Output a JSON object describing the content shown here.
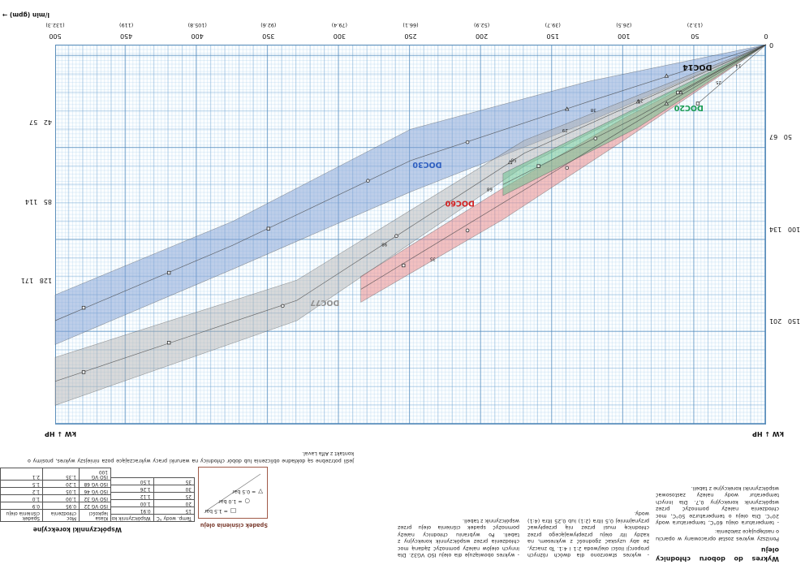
{
  "intro": {
    "title": "Wykres do doboru chłodnicy oleju",
    "p1": "Poniższy wykres został opracowany w oparciu o następujące założenia:",
    "p2": "- temperatura oleju 60°C, temperatura wody 20°C. Dla oleju o temperaturze 50°C, moc chłodzenia należy pomnożyć przez współczynnik korekcyjny 0,7. Dla innych temperatur wody należy zastosować współczynniki korekcyjne z tabeli."
  },
  "note_ratio": "- wykres stworzono dla dwóch różnych proporcji ilości olej/woda 2:1 i 4:1. To znaczy, że aby uzyskać zgodność z wykresem, na każdy litr oleju przepływającego przez chłodnicę musi przez nią przepływać przynajmniej 0,5 litra (2:1) lub 0,25 litra (4:1) wody.",
  "note_viscosity": "- wykres obowiązuje dla oleju ISO VG32. Dla innych olejów należy pomnożyć żądaną moc chłodzenia przez współczynnik korekcyjny z tabeli. Po wybraniu chłodnicy należy pomnożyć spadek ciśnienia oleju przez współczynnik z tabeli.",
  "pressure_legend": {
    "title": "Spadek ciśnienia oleju",
    "items": [
      {
        "symbol": "square",
        "label": "= 1.5 bar"
      },
      {
        "symbol": "circle",
        "label": "= 1.0 bar"
      },
      {
        "symbol": "triangle",
        "label": "= 0.5 bar"
      }
    ]
  },
  "correction": {
    "title": "Współczynniki korekcyjne",
    "water_table": {
      "headers": [
        "Temp. wody °C",
        "Współczynnik korekcyjny"
      ],
      "rows": [
        [
          "15",
          "0.91"
        ],
        [
          "20",
          "1.00"
        ],
        [
          "25",
          "1.12"
        ],
        [
          "30",
          "1.26"
        ],
        [
          "35",
          "1.50"
        ]
      ]
    },
    "viscosity_table": {
      "headers": [
        "Klasa lepkości",
        "Moc chłodzenia",
        "Spadek ciśnienia oleju"
      ],
      "rows": [
        [
          "ISO VG 22",
          "0.95",
          "0.9"
        ],
        [
          "ISO VG 32",
          "1.00",
          "1.0"
        ],
        [
          "ISO VG 46",
          "1.05",
          "1.2"
        ],
        [
          "ISO VG 68",
          "1.20",
          "1.5"
        ],
        [
          "ISO VG 100",
          "1.35",
          "2.1"
        ]
      ]
    }
  },
  "contact_note": "Jeśli potrzebne są dokładne obliczenia lub dobór chłodnicy na warunki pracy wykraczające poza niniejszy wykres, prosimy o kontakt z Alfa Laval.",
  "chart_data": {
    "type": "area",
    "title": "Wykres do doboru chłodnicy oleju",
    "x_axis": {
      "label": "l/min (gpm) →",
      "unit": "l/min",
      "range": [
        0,
        500
      ],
      "ticks": [
        {
          "lmin": "0",
          "gpm": ""
        },
        {
          "lmin": "50",
          "gpm": "(13.2)"
        },
        {
          "lmin": "100",
          "gpm": "(26.5)"
        },
        {
          "lmin": "150",
          "gpm": "(39.7)"
        },
        {
          "lmin": "200",
          "gpm": "(52.9)"
        },
        {
          "lmin": "250",
          "gpm": "(66.1)"
        },
        {
          "lmin": "300",
          "gpm": "(79.4)"
        },
        {
          "lmin": "350",
          "gpm": "(92.6)"
        },
        {
          "lmin": "400",
          "gpm": "(105.8)"
        },
        {
          "lmin": "450",
          "gpm": "(119)"
        },
        {
          "lmin": "500",
          "gpm": "(132.3)"
        }
      ]
    },
    "y_axis": {
      "label": "kW ↓ HP",
      "unit": "kW",
      "range": [
        0,
        205
      ],
      "left_ticks": [
        {
          "kw": "0",
          "hp": ""
        },
        {
          "kw": "50",
          "hp": "67"
        },
        {
          "kw": "100",
          "hp": "134"
        },
        {
          "kw": "150",
          "hp": "201"
        }
      ],
      "right_ticks": [
        {
          "kw": "42",
          "hp": "57"
        },
        {
          "kw": "85",
          "hp": "114"
        },
        {
          "kw": "128",
          "hp": "171"
        }
      ]
    },
    "series": [
      {
        "name": "DOC30",
        "label_color": "#2f5fc0",
        "fill": "rgba(125,158,212,0.50)",
        "label_pos": [
          228,
          64
        ],
        "upper": [
          [
            0,
            0
          ],
          [
            125,
            42
          ],
          [
            250,
            80
          ],
          [
            375,
            122
          ],
          [
            500,
            163
          ]
        ],
        "lower": [
          [
            500,
            136
          ],
          [
            375,
            96
          ],
          [
            250,
            46
          ],
          [
            125,
            20
          ],
          [
            0,
            0
          ]
        ],
        "center": [
          [
            0,
            0
          ],
          [
            125,
            31
          ],
          [
            250,
            63
          ],
          [
            375,
            109
          ],
          [
            500,
            150
          ]
        ]
      },
      {
        "name": "DOC77",
        "label_color": "#8f8f8f",
        "fill": "rgba(172,172,172,0.45)",
        "label_pos": [
          300,
          139
        ],
        "upper": [
          [
            0,
            0
          ],
          [
            170,
            66
          ],
          [
            330,
            150
          ],
          [
            500,
            196
          ]
        ],
        "lower": [
          [
            500,
            170
          ],
          [
            330,
            128
          ],
          [
            170,
            52
          ],
          [
            0,
            0
          ]
        ],
        "center": [
          [
            0,
            0
          ],
          [
            170,
            59
          ],
          [
            330,
            139
          ],
          [
            500,
            183
          ]
        ]
      },
      {
        "name": "DOC60",
        "label_color": "#d42222",
        "fill": "rgba(232,130,130,0.50)",
        "label_pos": [
          205,
          85
        ],
        "upper": [
          [
            0,
            0
          ],
          [
            100,
            52
          ],
          [
            185,
            95
          ],
          [
            285,
            140
          ]
        ],
        "lower": [
          [
            285,
            126
          ],
          [
            185,
            78
          ],
          [
            100,
            40
          ],
          [
            0,
            0
          ]
        ],
        "center": [
          [
            0,
            0
          ],
          [
            100,
            46
          ],
          [
            185,
            86
          ],
          [
            285,
            133
          ]
        ]
      },
      {
        "name": "DOC20",
        "label_color": "#169a50",
        "fill": "rgba(110,195,145,0.55)",
        "label_pos": [
          44,
          33
        ],
        "upper": [
          [
            0,
            0
          ],
          [
            90,
            45
          ],
          [
            185,
            82
          ]
        ],
        "lower": [
          [
            185,
            70
          ],
          [
            90,
            34
          ],
          [
            0,
            0
          ]
        ],
        "center": [
          [
            0,
            0
          ],
          [
            90,
            39
          ],
          [
            185,
            76
          ]
        ]
      },
      {
        "name": "DOC14",
        "label_color": "#111111",
        "fill": "none",
        "label_pos": [
          38,
          11
        ],
        "lines": [
          [
            [
              0,
              0
            ],
            [
              48,
              32
            ]
          ],
          [
            [
              0,
              0
            ],
            [
              62,
              26
            ]
          ]
        ]
      }
    ],
    "markers": [
      {
        "shape": "square",
        "at": [
          48,
          32
        ]
      },
      {
        "shape": "square",
        "at": [
          62,
          26
        ]
      },
      {
        "shape": "triangle",
        "at": [
          60,
          26
        ]
      },
      {
        "shape": "circle",
        "at": [
          120,
          51
        ]
      },
      {
        "shape": "square",
        "at": [
          160,
          66
        ]
      },
      {
        "shape": "triangle",
        "at": [
          70,
          17
        ]
      },
      {
        "shape": "triangle",
        "at": [
          140,
          35
        ]
      },
      {
        "shape": "circle",
        "at": [
          210,
          53
        ]
      },
      {
        "shape": "circle",
        "at": [
          280,
          74
        ]
      },
      {
        "shape": "square",
        "at": [
          350,
          100
        ]
      },
      {
        "shape": "square",
        "at": [
          420,
          124
        ]
      },
      {
        "shape": "square",
        "at": [
          480,
          143
        ]
      },
      {
        "shape": "triangle",
        "at": [
          70,
          32
        ]
      },
      {
        "shape": "circle",
        "at": [
          140,
          67
        ]
      },
      {
        "shape": "circle",
        "at": [
          210,
          101
        ]
      },
      {
        "shape": "square",
        "at": [
          255,
          120
        ]
      },
      {
        "shape": "triangle",
        "at": [
          90,
          31
        ]
      },
      {
        "shape": "triangle",
        "at": [
          180,
          64
        ]
      },
      {
        "shape": "circle",
        "at": [
          260,
          104
        ]
      },
      {
        "shape": "circle",
        "at": [
          340,
          142
        ]
      },
      {
        "shape": "square",
        "at": [
          420,
          162
        ]
      },
      {
        "shape": "square",
        "at": [
          480,
          178
        ]
      }
    ],
    "marker_labels": [
      {
        "text": "14",
        "at": [
          16,
          10
        ]
      },
      {
        "text": "25",
        "at": [
          30,
          19
        ]
      },
      {
        "text": "24",
        "at": [
          85,
          29
        ]
      },
      {
        "text": "38",
        "at": [
          118,
          34
        ]
      },
      {
        "text": "29",
        "at": [
          138,
          45
        ]
      },
      {
        "text": "58",
        "at": [
          174,
          61
        ]
      },
      {
        "text": "68",
        "at": [
          191,
          77
        ]
      },
      {
        "text": "35",
        "at": [
          231,
          115
        ]
      },
      {
        "text": "98",
        "at": [
          265,
          107
        ]
      }
    ]
  }
}
